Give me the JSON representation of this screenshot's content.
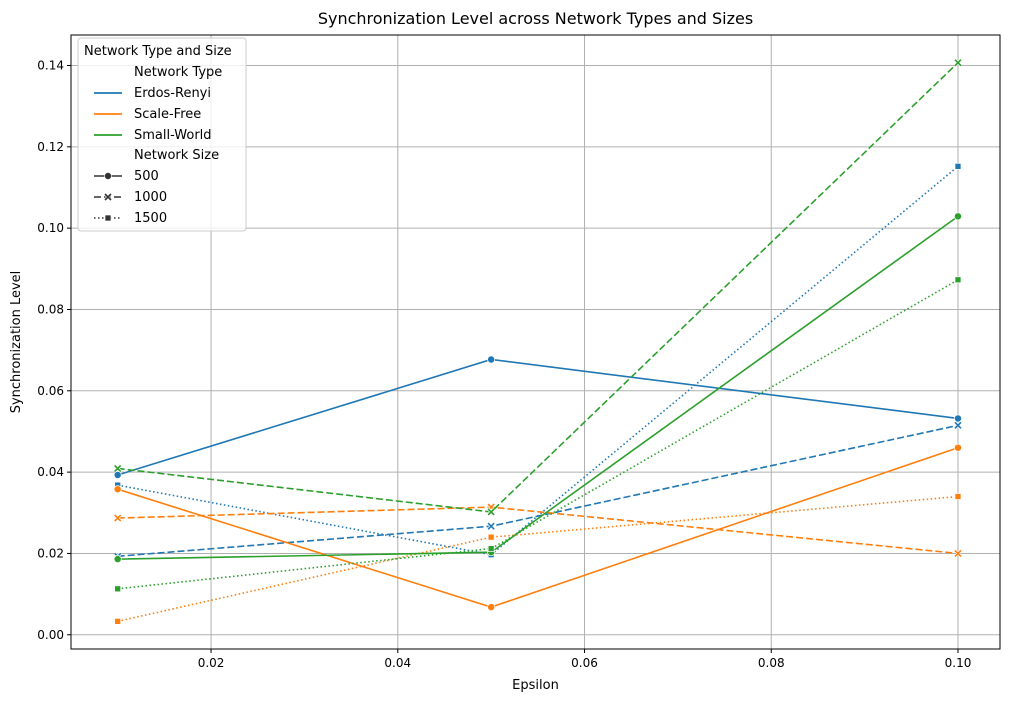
{
  "chart_data": {
    "type": "line",
    "title": "Synchronization Level across Network Types and Sizes",
    "xlabel": "Epsilon",
    "ylabel": "Synchronization Level",
    "x": [
      0.01,
      0.05,
      0.1
    ],
    "xlim": [
      0.005,
      0.1045
    ],
    "ylim": [
      -0.0035,
      0.1475
    ],
    "xticks": [
      0.02,
      0.04,
      0.06,
      0.08,
      0.1
    ],
    "xtick_labels": [
      "0.02",
      "0.04",
      "0.06",
      "0.08",
      "0.10"
    ],
    "yticks": [
      0.0,
      0.02,
      0.04,
      0.06,
      0.08,
      0.1,
      0.12,
      0.14
    ],
    "ytick_labels": [
      "0.00",
      "0.02",
      "0.04",
      "0.06",
      "0.08",
      "0.10",
      "0.12",
      "0.14"
    ],
    "grid": true,
    "legend": {
      "title": "Network Type and Size",
      "placement": "top-left",
      "hue_title": "Network Type",
      "style_title": "Network Size",
      "types": [
        {
          "label": "Erdos-Renyi",
          "color": "#1f77b4"
        },
        {
          "label": "Scale-Free",
          "color": "#ff7f0e"
        },
        {
          "label": "Small-World",
          "color": "#2ca02c"
        }
      ],
      "sizes": [
        {
          "label": "500",
          "dash": "solid",
          "marker": "circle"
        },
        {
          "label": "1000",
          "dash": "dashed",
          "marker": "x"
        },
        {
          "label": "1500",
          "dash": "dotted",
          "marker": "square"
        }
      ]
    },
    "series": [
      {
        "network_type": "Erdos-Renyi",
        "network_size": "500",
        "color": "#1f77b4",
        "dash": "solid",
        "marker": "circle",
        "values": [
          0.0393,
          0.0677,
          0.0532
        ]
      },
      {
        "network_type": "Erdos-Renyi",
        "network_size": "1000",
        "color": "#1f77b4",
        "dash": "dashed",
        "marker": "x",
        "values": [
          0.0193,
          0.0267,
          0.0515
        ]
      },
      {
        "network_type": "Erdos-Renyi",
        "network_size": "1500",
        "color": "#1f77b4",
        "dash": "dotted",
        "marker": "square",
        "values": [
          0.0368,
          0.0197,
          0.1152
        ]
      },
      {
        "network_type": "Scale-Free",
        "network_size": "500",
        "color": "#ff7f0e",
        "dash": "solid",
        "marker": "circle",
        "values": [
          0.0358,
          0.0068,
          0.046
        ]
      },
      {
        "network_type": "Scale-Free",
        "network_size": "1000",
        "color": "#ff7f0e",
        "dash": "dashed",
        "marker": "x",
        "values": [
          0.0287,
          0.0314,
          0.02
        ]
      },
      {
        "network_type": "Scale-Free",
        "network_size": "1500",
        "color": "#ff7f0e",
        "dash": "dotted",
        "marker": "square",
        "values": [
          0.0033,
          0.024,
          0.034
        ]
      },
      {
        "network_type": "Small-World",
        "network_size": "500",
        "color": "#2ca02c",
        "dash": "solid",
        "marker": "circle",
        "values": [
          0.0186,
          0.0203,
          0.1029
        ]
      },
      {
        "network_type": "Small-World",
        "network_size": "1000",
        "color": "#2ca02c",
        "dash": "dashed",
        "marker": "x",
        "values": [
          0.0409,
          0.0302,
          0.1407
        ]
      },
      {
        "network_type": "Small-World",
        "network_size": "1500",
        "color": "#2ca02c",
        "dash": "dotted",
        "marker": "square",
        "values": [
          0.0113,
          0.0212,
          0.0873
        ]
      }
    ]
  }
}
